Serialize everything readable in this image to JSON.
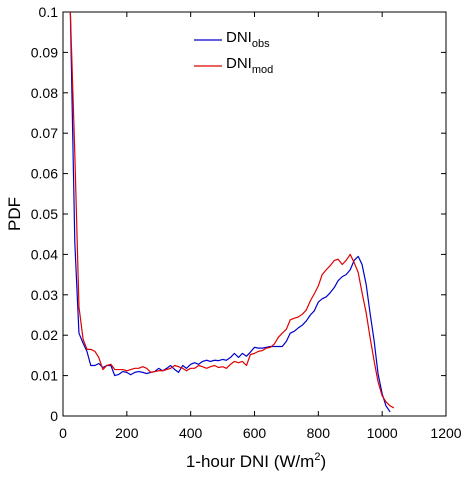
{
  "chart_data": {
    "type": "line",
    "xlabel": "1-hour DNI (W/m",
    "xlabel_sup": "2",
    "xlabel_suffix": ")",
    "ylabel": "PDF",
    "xlim": [
      0,
      1200
    ],
    "ylim": [
      0,
      0.1
    ],
    "xticks": [
      0,
      200,
      400,
      600,
      800,
      1000,
      1200
    ],
    "xtick_labels": [
      "0",
      "200",
      "400",
      "600",
      "800",
      "1000",
      "1200"
    ],
    "yticks": [
      0,
      0.01,
      0.02,
      0.03,
      0.04,
      0.05,
      0.06,
      0.07,
      0.08,
      0.09,
      0.1
    ],
    "ytick_labels": [
      "0",
      "0.01",
      "0.02",
      "0.03",
      "0.04",
      "0.05",
      "0.06",
      "0.07",
      "0.08",
      "0.09",
      "0.1"
    ],
    "grid": false,
    "legend_position": "top-center",
    "series": [
      {
        "name": "DNI",
        "name_sub": "obs",
        "color": "#0000cc",
        "points": [
          [
            23,
            0.1
          ],
          [
            37,
            0.043
          ],
          [
            50,
            0.0205
          ],
          [
            63,
            0.018
          ],
          [
            75,
            0.016
          ],
          [
            87,
            0.0125
          ],
          [
            100,
            0.0125
          ],
          [
            112,
            0.013
          ],
          [
            125,
            0.012
          ],
          [
            137,
            0.0125
          ],
          [
            150,
            0.0125
          ],
          [
            162,
            0.01
          ],
          [
            175,
            0.0103
          ],
          [
            187,
            0.011
          ],
          [
            200,
            0.0108
          ],
          [
            212,
            0.0102
          ],
          [
            225,
            0.0108
          ],
          [
            237,
            0.011
          ],
          [
            250,
            0.0108
          ],
          [
            262,
            0.0105
          ],
          [
            275,
            0.0108
          ],
          [
            287,
            0.011
          ],
          [
            300,
            0.0118
          ],
          [
            312,
            0.0112
          ],
          [
            325,
            0.0118
          ],
          [
            337,
            0.0125
          ],
          [
            350,
            0.0115
          ],
          [
            362,
            0.0108
          ],
          [
            375,
            0.0125
          ],
          [
            387,
            0.0118
          ],
          [
            400,
            0.0128
          ],
          [
            412,
            0.0132
          ],
          [
            425,
            0.0128
          ],
          [
            437,
            0.0135
          ],
          [
            450,
            0.0138
          ],
          [
            462,
            0.0135
          ],
          [
            475,
            0.0138
          ],
          [
            487,
            0.0137
          ],
          [
            500,
            0.014
          ],
          [
            512,
            0.0138
          ],
          [
            525,
            0.0145
          ],
          [
            537,
            0.0155
          ],
          [
            550,
            0.0145
          ],
          [
            562,
            0.0155
          ],
          [
            575,
            0.0148
          ],
          [
            587,
            0.0158
          ],
          [
            600,
            0.017
          ],
          [
            612,
            0.0168
          ],
          [
            625,
            0.0168
          ],
          [
            637,
            0.017
          ],
          [
            650,
            0.0172
          ],
          [
            662,
            0.0172
          ],
          [
            675,
            0.0172
          ],
          [
            687,
            0.0172
          ],
          [
            700,
            0.0185
          ],
          [
            712,
            0.0205
          ],
          [
            725,
            0.021
          ],
          [
            737,
            0.0218
          ],
          [
            750,
            0.0225
          ],
          [
            762,
            0.0235
          ],
          [
            775,
            0.025
          ],
          [
            787,
            0.026
          ],
          [
            800,
            0.0282
          ],
          [
            812,
            0.029
          ],
          [
            825,
            0.0295
          ],
          [
            837,
            0.0305
          ],
          [
            850,
            0.0318
          ],
          [
            862,
            0.0335
          ],
          [
            875,
            0.0345
          ],
          [
            887,
            0.035
          ],
          [
            900,
            0.0362
          ],
          [
            912,
            0.0385
          ],
          [
            925,
            0.0395
          ],
          [
            937,
            0.0375
          ],
          [
            950,
            0.0325
          ],
          [
            962,
            0.0255
          ],
          [
            975,
            0.0185
          ],
          [
            987,
            0.0105
          ],
          [
            1000,
            0.0055
          ],
          [
            1012,
            0.0025
          ],
          [
            1025,
            0.001
          ]
        ]
      },
      {
        "name": "DNI",
        "name_sub": "mod",
        "color": "#e00000",
        "points": [
          [
            23,
            0.1
          ],
          [
            37,
            0.065
          ],
          [
            50,
            0.027
          ],
          [
            63,
            0.019
          ],
          [
            75,
            0.0165
          ],
          [
            87,
            0.0165
          ],
          [
            100,
            0.016
          ],
          [
            112,
            0.0145
          ],
          [
            125,
            0.0115
          ],
          [
            137,
            0.0125
          ],
          [
            150,
            0.0128
          ],
          [
            162,
            0.0115
          ],
          [
            175,
            0.0115
          ],
          [
            187,
            0.0115
          ],
          [
            200,
            0.0112
          ],
          [
            212,
            0.0115
          ],
          [
            225,
            0.0118
          ],
          [
            237,
            0.0118
          ],
          [
            250,
            0.0122
          ],
          [
            262,
            0.0118
          ],
          [
            275,
            0.0108
          ],
          [
            287,
            0.011
          ],
          [
            300,
            0.0112
          ],
          [
            312,
            0.0112
          ],
          [
            325,
            0.0115
          ],
          [
            337,
            0.0118
          ],
          [
            350,
            0.0125
          ],
          [
            362,
            0.0122
          ],
          [
            375,
            0.0118
          ],
          [
            387,
            0.0112
          ],
          [
            400,
            0.0118
          ],
          [
            412,
            0.0118
          ],
          [
            425,
            0.0125
          ],
          [
            437,
            0.0122
          ],
          [
            450,
            0.0118
          ],
          [
            462,
            0.0122
          ],
          [
            475,
            0.0125
          ],
          [
            487,
            0.012
          ],
          [
            500,
            0.0122
          ],
          [
            512,
            0.0118
          ],
          [
            525,
            0.0128
          ],
          [
            537,
            0.0135
          ],
          [
            550,
            0.0132
          ],
          [
            562,
            0.0135
          ],
          [
            575,
            0.0125
          ],
          [
            587,
            0.0152
          ],
          [
            600,
            0.0155
          ],
          [
            612,
            0.016
          ],
          [
            625,
            0.0162
          ],
          [
            637,
            0.0168
          ],
          [
            650,
            0.017
          ],
          [
            662,
            0.0178
          ],
          [
            675,
            0.0195
          ],
          [
            687,
            0.0205
          ],
          [
            700,
            0.0215
          ],
          [
            712,
            0.0238
          ],
          [
            725,
            0.0242
          ],
          [
            737,
            0.0245
          ],
          [
            750,
            0.0252
          ],
          [
            762,
            0.0262
          ],
          [
            775,
            0.0285
          ],
          [
            787,
            0.0302
          ],
          [
            800,
            0.0322
          ],
          [
            812,
            0.035
          ],
          [
            825,
            0.0362
          ],
          [
            837,
            0.0372
          ],
          [
            850,
            0.0385
          ],
          [
            862,
            0.0388
          ],
          [
            875,
            0.0375
          ],
          [
            887,
            0.0385
          ],
          [
            900,
            0.04
          ],
          [
            912,
            0.038
          ],
          [
            925,
            0.0355
          ],
          [
            937,
            0.0305
          ],
          [
            950,
            0.0255
          ],
          [
            962,
            0.0195
          ],
          [
            975,
            0.0135
          ],
          [
            987,
            0.0085
          ],
          [
            1000,
            0.005
          ],
          [
            1012,
            0.0035
          ],
          [
            1025,
            0.0025
          ],
          [
            1037,
            0.002
          ]
        ]
      }
    ]
  }
}
